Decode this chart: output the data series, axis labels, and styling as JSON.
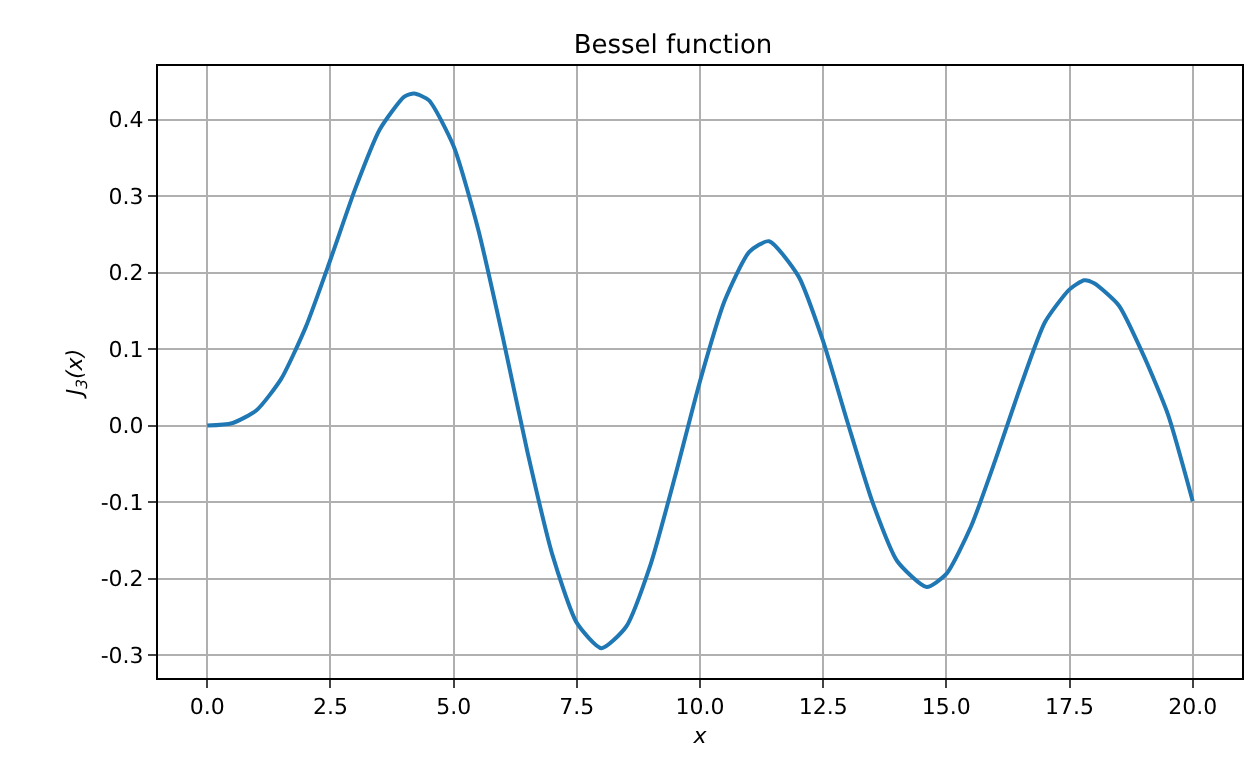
{
  "chart_data": {
    "type": "line",
    "title": "Bessel function",
    "xlabel": "x",
    "ylabel": "J$_{3}$(x)",
    "x": [
      0,
      0.5,
      1,
      1.5,
      2,
      2.5,
      3,
      3.5,
      4,
      4.2,
      4.5,
      5,
      5.5,
      6,
      6.5,
      7,
      7.5,
      8,
      8.5,
      9,
      9.5,
      10,
      10.5,
      11,
      11.4,
      12,
      12.5,
      13,
      13.5,
      14,
      14.6,
      15,
      15.5,
      16,
      16.5,
      17,
      17.5,
      17.8,
      18,
      18.5,
      19,
      19.5,
      20
    ],
    "series": [
      {
        "color": "#1f77b4",
        "values": [
          0,
          0.003,
          0.02,
          0.061,
          0.129,
          0.217,
          0.309,
          0.387,
          0.43,
          0.434,
          0.425,
          0.365,
          0.256,
          0.115,
          -0.035,
          -0.168,
          -0.258,
          -0.291,
          -0.263,
          -0.181,
          -0.065,
          0.058,
          0.163,
          0.227,
          0.241,
          0.195,
          0.11,
          0.003,
          -0.1,
          -0.177,
          -0.211,
          -0.194,
          -0.132,
          -0.044,
          0.05,
          0.135,
          0.178,
          0.19,
          0.186,
          0.157,
          0.092,
          0.014,
          -0.099
        ]
      }
    ],
    "xlim": [
      -1,
      21
    ],
    "ylim": [
      -0.33,
      0.47
    ],
    "xticks": [
      {
        "value": 0,
        "label": "0.0"
      },
      {
        "value": 2.5,
        "label": "2.5"
      },
      {
        "value": 5,
        "label": "5.0"
      },
      {
        "value": 7.5,
        "label": "7.5"
      },
      {
        "value": 10,
        "label": "10.0"
      },
      {
        "value": 12.5,
        "label": "12.5"
      },
      {
        "value": 15,
        "label": "15.0"
      },
      {
        "value": 17.5,
        "label": "17.5"
      },
      {
        "value": 20,
        "label": "20.0"
      }
    ],
    "yticks": [
      -0.3,
      -0.2,
      -0.1,
      {
        "value": 0,
        "label": "0.0"
      },
      0.1,
      0.2,
      0.3,
      0.4
    ],
    "grid": true,
    "marker": "none",
    "line_style": "solid"
  }
}
